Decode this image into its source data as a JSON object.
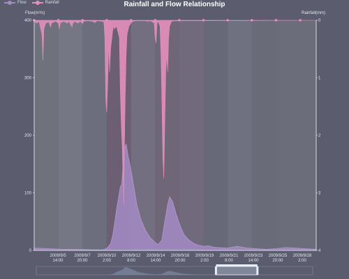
{
  "chart_data": {
    "type": "area",
    "title": "Rainfall and Flow Relationship",
    "legend": {
      "position": "top-left",
      "entries": [
        "Flow",
        "Rainfall"
      ]
    },
    "y_left": {
      "label": "Flow(m³/s)",
      "ylim": [
        0,
        400
      ],
      "ticks": [
        0,
        100,
        200,
        300,
        400
      ]
    },
    "y_right": {
      "label": "Rainfall(mm)",
      "ylim": [
        0,
        4
      ],
      "inverse": true,
      "ticks": [
        0,
        1,
        2,
        3,
        4
      ]
    },
    "x_tick_labels": [
      [
        "2009/9/5",
        "14:00"
      ],
      [
        "2009/9/7",
        "20:00"
      ],
      [
        "2009/9/10",
        "2:00"
      ],
      [
        "2009/9/12",
        "8:00"
      ],
      [
        "2009/9/14",
        "14:00"
      ],
      [
        "2009/9/16",
        "20:00"
      ],
      [
        "2009/9/19",
        "2:00"
      ],
      [
        "2009/9/21",
        "8:00"
      ],
      [
        "2009/9/23",
        "14:00"
      ],
      [
        "2009/9/25",
        "20:00"
      ],
      [
        "2009/9/28",
        "2:00"
      ]
    ],
    "x_range_hours": [
      0,
      583
    ],
    "grid": false,
    "series": [
      {
        "name": "Flow",
        "axis": "left",
        "color": "#a38bc4",
        "points": [
          [
            0,
            4
          ],
          [
            30,
            3
          ],
          [
            60,
            2
          ],
          [
            100,
            1.5
          ],
          [
            130,
            1
          ],
          [
            140,
            0.8
          ],
          [
            146,
            2
          ],
          [
            152,
            5
          ],
          [
            158,
            12
          ],
          [
            162,
            25
          ],
          [
            166,
            45
          ],
          [
            170,
            70
          ],
          [
            174,
            90
          ],
          [
            178,
            110
          ],
          [
            181,
            115
          ],
          [
            184,
            150
          ],
          [
            186,
            175
          ],
          [
            190,
            185
          ],
          [
            194,
            165
          ],
          [
            200,
            140
          ],
          [
            206,
            110
          ],
          [
            212,
            80
          ],
          [
            220,
            55
          ],
          [
            230,
            35
          ],
          [
            240,
            22
          ],
          [
            250,
            14
          ],
          [
            256,
            10
          ],
          [
            264,
            18
          ],
          [
            270,
            50
          ],
          [
            276,
            80
          ],
          [
            280,
            93
          ],
          [
            286,
            85
          ],
          [
            294,
            62
          ],
          [
            302,
            42
          ],
          [
            310,
            27
          ],
          [
            320,
            18
          ],
          [
            330,
            12
          ],
          [
            340,
            9
          ],
          [
            350,
            7
          ],
          [
            360,
            8
          ],
          [
            370,
            6
          ],
          [
            380,
            5
          ],
          [
            400,
            4
          ],
          [
            420,
            7
          ],
          [
            440,
            4
          ],
          [
            460,
            3
          ],
          [
            480,
            2
          ],
          [
            500,
            3
          ],
          [
            520,
            5
          ],
          [
            540,
            4
          ],
          [
            560,
            3
          ],
          [
            583,
            2
          ]
        ]
      },
      {
        "name": "Rainfall",
        "axis": "right",
        "color": "#e28fbb",
        "points": [
          [
            0,
            0.02
          ],
          [
            5,
            0.05
          ],
          [
            10,
            0.02
          ],
          [
            16,
            0.25
          ],
          [
            18,
            0.7
          ],
          [
            20,
            0.15
          ],
          [
            24,
            0.05
          ],
          [
            30,
            0.03
          ],
          [
            34,
            0.12
          ],
          [
            36,
            0.05
          ],
          [
            44,
            0.02
          ],
          [
            50,
            0.05
          ],
          [
            52,
            0.15
          ],
          [
            54,
            0.05
          ],
          [
            60,
            0.02
          ],
          [
            64,
            0.03
          ],
          [
            68,
            0.05
          ],
          [
            72,
            0.02
          ],
          [
            78,
            0.12
          ],
          [
            80,
            0.05
          ],
          [
            84,
            0.02
          ],
          [
            90,
            0.05
          ],
          [
            96,
            0.02
          ],
          [
            100,
            0.06
          ],
          [
            102,
            0.02
          ],
          [
            110,
            0.01
          ],
          [
            120,
            0.02
          ],
          [
            126,
            0.04
          ],
          [
            130,
            0.01
          ],
          [
            140,
            0.02
          ],
          [
            144,
            0.03
          ],
          [
            146,
            0.3
          ],
          [
            148,
            1.4
          ],
          [
            150,
            1.6
          ],
          [
            152,
            1.1
          ],
          [
            154,
            0.4
          ],
          [
            156,
            0.9
          ],
          [
            158,
            0.5
          ],
          [
            160,
            0.35
          ],
          [
            162,
            0.2
          ],
          [
            164,
            0.1
          ],
          [
            166,
            0.15
          ],
          [
            170,
            0.1
          ],
          [
            176,
            0.3
          ],
          [
            178,
            1.2
          ],
          [
            180,
            1.8
          ],
          [
            182,
            2.2
          ],
          [
            184,
            2.8
          ],
          [
            185,
            3.2
          ],
          [
            186,
            2.5
          ],
          [
            188,
            1.4
          ],
          [
            190,
            0.6
          ],
          [
            192,
            0.25
          ],
          [
            196,
            0.1
          ],
          [
            200,
            0.05
          ],
          [
            204,
            0.02
          ],
          [
            210,
            0.01
          ],
          [
            230,
            0.01
          ],
          [
            234,
            0.02
          ],
          [
            240,
            0.01
          ],
          [
            248,
            0.05
          ],
          [
            250,
            0.3
          ],
          [
            252,
            0.4
          ],
          [
            254,
            0.05
          ],
          [
            256,
            0.02
          ],
          [
            260,
            0.1
          ],
          [
            262,
            0.6
          ],
          [
            264,
            1.4
          ],
          [
            266,
            2.4
          ],
          [
            268,
            2.75
          ],
          [
            270,
            1.8
          ],
          [
            272,
            0.9
          ],
          [
            274,
            0.6
          ],
          [
            276,
            0.9
          ],
          [
            278,
            0.3
          ],
          [
            280,
            0.1
          ],
          [
            284,
            0.02
          ],
          [
            290,
            0.01
          ],
          [
            583,
            0
          ]
        ],
        "markers_at_hours": [
          0,
          50,
          100,
          150,
          200,
          250,
          300,
          350,
          400,
          450,
          500,
          550
        ]
      }
    ],
    "background_bands": [
      {
        "from": 0,
        "to": 50,
        "color": "#6f717d"
      },
      {
        "from": 50,
        "to": 100,
        "color": "#767784"
      },
      {
        "from": 100,
        "to": 150,
        "color": "#6c6e7d"
      },
      {
        "from": 150,
        "to": 200,
        "color": "#6d5f73"
      },
      {
        "from": 200,
        "to": 250,
        "color": "#736e80"
      },
      {
        "from": 250,
        "to": 300,
        "color": "#6f6677"
      },
      {
        "from": 300,
        "to": 350,
        "color": "#706a7c"
      },
      {
        "from": 350,
        "to": 400,
        "color": "#676878"
      },
      {
        "from": 400,
        "to": 450,
        "color": "#6f7180"
      },
      {
        "from": 450,
        "to": 500,
        "color": "#696b79"
      },
      {
        "from": 500,
        "to": 583,
        "color": "#6b6d7b"
      }
    ],
    "data_zoom": {
      "start_percent": 65,
      "end_percent": 80
    }
  }
}
